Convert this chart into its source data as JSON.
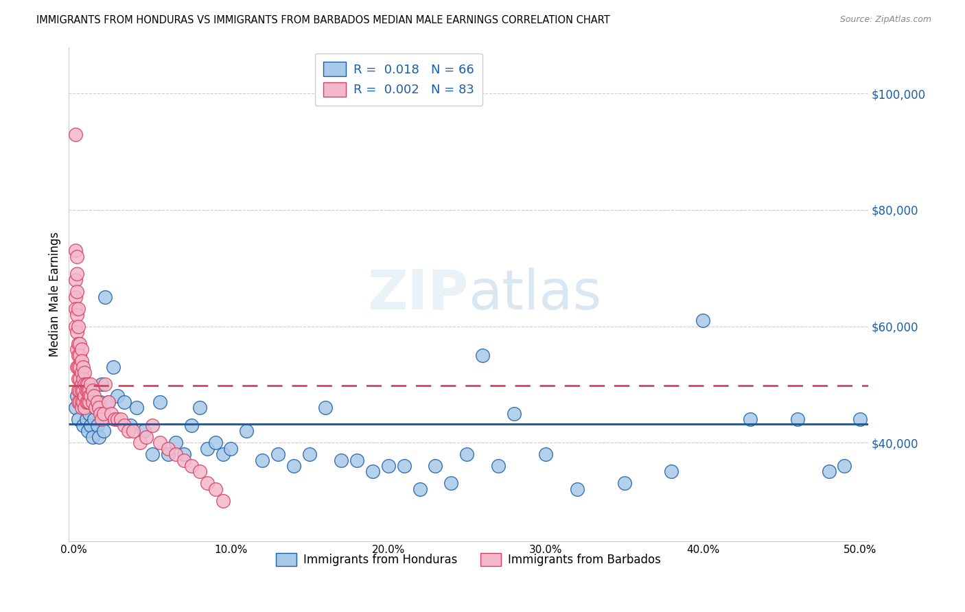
{
  "title": "IMMIGRANTS FROM HONDURAS VS IMMIGRANTS FROM BARBADOS MEDIAN MALE EARNINGS CORRELATION CHART",
  "source": "Source: ZipAtlas.com",
  "ylabel": "Median Male Earnings",
  "xlabel_ticks": [
    "0.0%",
    "10.0%",
    "20.0%",
    "30.0%",
    "40.0%",
    "50.0%"
  ],
  "xlabel_vals": [
    0.0,
    0.1,
    0.2,
    0.3,
    0.4,
    0.5
  ],
  "ytick_labels": [
    "$40,000",
    "$60,000",
    "$80,000",
    "$100,000"
  ],
  "ytick_vals": [
    40000,
    60000,
    80000,
    100000
  ],
  "ylim": [
    23000,
    108000
  ],
  "xlim": [
    -0.003,
    0.505
  ],
  "watermark": "ZIPatlas",
  "r_honduras": 0.018,
  "n_honduras": 66,
  "r_barbados": 0.002,
  "n_barbados": 83,
  "trendline_honduras_y": 43200,
  "trendline_barbados_y": 49800,
  "color_honduras": "#a8c8e8",
  "color_barbados": "#f4b8cb",
  "color_honduras_line": "#1a5fa8",
  "color_barbados_line": "#d94060",
  "title_fontsize": 11,
  "honduras_x": [
    0.001,
    0.002,
    0.003,
    0.004,
    0.005,
    0.006,
    0.007,
    0.008,
    0.009,
    0.01,
    0.011,
    0.012,
    0.013,
    0.014,
    0.015,
    0.016,
    0.017,
    0.018,
    0.019,
    0.02,
    0.022,
    0.025,
    0.028,
    0.032,
    0.036,
    0.04,
    0.045,
    0.05,
    0.055,
    0.06,
    0.065,
    0.07,
    0.075,
    0.08,
    0.085,
    0.09,
    0.095,
    0.1,
    0.11,
    0.12,
    0.13,
    0.14,
    0.15,
    0.16,
    0.17,
    0.18,
    0.19,
    0.2,
    0.21,
    0.22,
    0.23,
    0.24,
    0.25,
    0.26,
    0.27,
    0.28,
    0.3,
    0.32,
    0.35,
    0.38,
    0.4,
    0.43,
    0.46,
    0.48,
    0.49,
    0.5
  ],
  "honduras_y": [
    46000,
    48000,
    44000,
    47000,
    50000,
    43000,
    46000,
    44000,
    42000,
    45000,
    43000,
    41000,
    44000,
    46000,
    43000,
    41000,
    47000,
    50000,
    42000,
    65000,
    47000,
    53000,
    48000,
    47000,
    43000,
    46000,
    42000,
    38000,
    47000,
    38000,
    40000,
    38000,
    43000,
    46000,
    39000,
    40000,
    38000,
    39000,
    42000,
    37000,
    38000,
    36000,
    38000,
    46000,
    37000,
    37000,
    35000,
    36000,
    36000,
    32000,
    36000,
    33000,
    38000,
    55000,
    36000,
    45000,
    38000,
    32000,
    33000,
    35000,
    61000,
    44000,
    44000,
    35000,
    36000,
    44000
  ],
  "barbados_x": [
    0.001,
    0.001,
    0.001,
    0.001,
    0.001,
    0.001,
    0.002,
    0.002,
    0.002,
    0.002,
    0.002,
    0.002,
    0.002,
    0.003,
    0.003,
    0.003,
    0.003,
    0.003,
    0.003,
    0.003,
    0.003,
    0.004,
    0.004,
    0.004,
    0.004,
    0.004,
    0.004,
    0.005,
    0.005,
    0.005,
    0.005,
    0.005,
    0.005,
    0.005,
    0.006,
    0.006,
    0.006,
    0.006,
    0.007,
    0.007,
    0.007,
    0.007,
    0.008,
    0.008,
    0.008,
    0.009,
    0.009,
    0.009,
    0.01,
    0.01,
    0.01,
    0.011,
    0.011,
    0.012,
    0.012,
    0.013,
    0.014,
    0.015,
    0.016,
    0.017,
    0.018,
    0.019,
    0.02,
    0.022,
    0.024,
    0.026,
    0.028,
    0.03,
    0.032,
    0.035,
    0.038,
    0.042,
    0.046,
    0.05,
    0.055,
    0.06,
    0.065,
    0.07,
    0.075,
    0.08,
    0.085,
    0.09,
    0.095
  ],
  "barbados_y": [
    93000,
    73000,
    68000,
    65000,
    63000,
    60000,
    72000,
    69000,
    66000,
    62000,
    59000,
    56000,
    53000,
    63000,
    60000,
    57000,
    55000,
    53000,
    51000,
    49000,
    47000,
    57000,
    55000,
    53000,
    51000,
    49000,
    47000,
    56000,
    54000,
    52000,
    50000,
    49000,
    47000,
    46000,
    53000,
    51000,
    49000,
    47000,
    52000,
    50000,
    48000,
    46000,
    50000,
    49000,
    47000,
    50000,
    49000,
    47000,
    49000,
    48000,
    47000,
    50000,
    48000,
    49000,
    47000,
    48000,
    46000,
    47000,
    46000,
    45000,
    44000,
    45000,
    50000,
    47000,
    45000,
    44000,
    44000,
    44000,
    43000,
    42000,
    42000,
    40000,
    41000,
    43000,
    40000,
    39000,
    38000,
    37000,
    36000,
    35000,
    33000,
    32000,
    30000
  ]
}
